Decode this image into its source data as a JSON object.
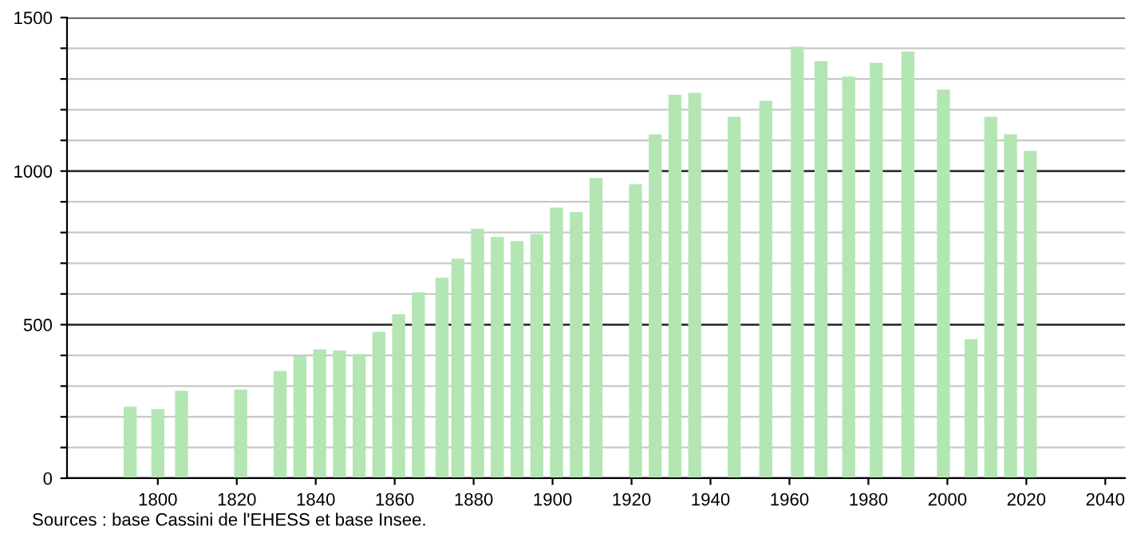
{
  "chart_data": {
    "type": "bar",
    "color": "#b3e6b3",
    "x": [
      1793,
      1800,
      1806,
      1821,
      1831,
      1836,
      1841,
      1846,
      1851,
      1856,
      1861,
      1866,
      1872,
      1876,
      1881,
      1886,
      1891,
      1896,
      1901,
      1906,
      1911,
      1921,
      1926,
      1931,
      1936,
      1946,
      1954,
      1962,
      1968,
      1975,
      1982,
      1990,
      1999,
      2006,
      2011,
      2016,
      2021
    ],
    "values": [
      233,
      225,
      285,
      289,
      349,
      397,
      420,
      416,
      404,
      477,
      534,
      605,
      653,
      715,
      812,
      786,
      772,
      795,
      881,
      867,
      978,
      957,
      1120,
      1249,
      1255,
      1177,
      1229,
      1405,
      1358,
      1308,
      1353,
      1389,
      1265,
      453,
      1177,
      1120,
      1066
    ],
    "xlim": [
      1777,
      2045
    ],
    "xticks": [
      1800,
      1820,
      1840,
      1860,
      1880,
      1900,
      1920,
      1940,
      1960,
      1980,
      2000,
      2020,
      2040
    ],
    "ylim": [
      0,
      1500
    ],
    "yticks": [
      0,
      {
        "value": 100,
        "label": null
      },
      {
        "value": 200,
        "label": null
      },
      {
        "value": 300,
        "label": null
      },
      {
        "value": 400,
        "label": null
      },
      500,
      {
        "value": 600,
        "label": null
      },
      {
        "value": 700,
        "label": null
      },
      {
        "value": 800,
        "label": null
      },
      {
        "value": 900,
        "label": null
      },
      1000,
      {
        "value": 1100,
        "label": null
      },
      {
        "value": 1200,
        "label": null
      },
      {
        "value": 1300,
        "label": null
      },
      {
        "value": 1400,
        "label": null
      },
      1500
    ],
    "grid": "y",
    "annotations": [
      "Sources : base Cassini de l'EHESS et base Insee."
    ]
  }
}
